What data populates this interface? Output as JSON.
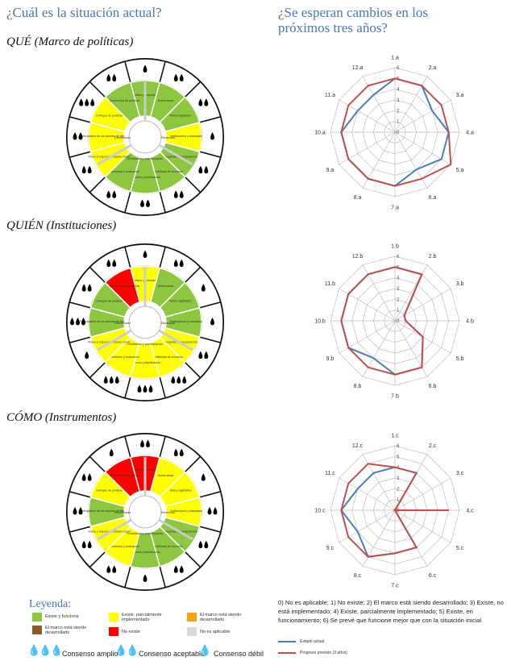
{
  "titles": {
    "left": "¿Cuál es la situación actual?",
    "right_line1": "¿Se esperan cambios en los",
    "right_line2": "próximos tres años?"
  },
  "sections": [
    {
      "heading": "QUÉ (Marco de políticas)"
    },
    {
      "heading": "QUIÉN (Instituciones)"
    },
    {
      "heading": "CÓMO (Instrumentos)"
    }
  ],
  "colors": {
    "green": "#8dc63f",
    "yellow": "#ffff00",
    "red": "#ff0000",
    "orange": "#f7a11a",
    "brown": "#8b5a2b",
    "grey": "#d9d9d9",
    "actual": "#4a7ebb",
    "projected": "#c0504d"
  },
  "wheel": {
    "segment_labels": [
      "Visión y voluntad",
      "Gobernanza",
      "Marco legislativo",
      "Instituciones y mandatos",
      "Integridad y transparencia",
      "Sostenibilidad de recursos",
      "Acciones y planificación",
      "Monitoreo y evaluación",
      "Roles y responsabilidades claros",
      "Participación de los actores de interés",
      "Enfoque de políticas",
      "Coherencia de políticas"
    ],
    "center_labels": [
      "Efectividad",
      "Eficiencia",
      "Confianza y participación"
    ],
    "sections": [
      {
        "colors": [
          "green",
          "green",
          "green",
          "yellow",
          "green",
          "green",
          "green",
          "green",
          "yellow",
          "yellow",
          "yellow",
          "green"
        ],
        "consensus": [
          1,
          2,
          2,
          1,
          2,
          2,
          2,
          2,
          2,
          2,
          3,
          2
        ]
      },
      {
        "colors": [
          "yellow",
          "green",
          "green",
          "green",
          "yellow",
          "yellow",
          "yellow",
          "yellow",
          "yellow",
          "green",
          "green",
          "red"
        ],
        "consensus": [
          1,
          2,
          1,
          1,
          2,
          3,
          3,
          3,
          1,
          3,
          2,
          2
        ]
      },
      {
        "colors": [
          "red",
          "yellow",
          "yellow",
          "yellow",
          "green",
          "green",
          "green",
          "yellow",
          "yellow",
          "green",
          "yellow",
          "red"
        ],
        "consensus": [
          2,
          2,
          1,
          2,
          2,
          2,
          1,
          2,
          2,
          2,
          2,
          1
        ]
      }
    ]
  },
  "chart_data": [
    {
      "type": "radar",
      "categories": [
        "1.a",
        "2.a",
        "3.a",
        "4.a",
        "5.a",
        "6.a",
        "7.a",
        "8.a",
        "9.a",
        "10.a",
        "11.a",
        "12.a"
      ],
      "rlim": [
        0,
        6
      ],
      "tick_labels": [
        "0",
        "1",
        "2",
        "3",
        "4",
        "5",
        "6"
      ],
      "series": [
        {
          "name": "Estado actual",
          "values": [
            5,
            5,
            4,
            5,
            5,
            4,
            5,
            5,
            5,
            5,
            4,
            4
          ]
        },
        {
          "name": "Progreso previsto (3 años)",
          "values": [
            5,
            5,
            5,
            5,
            6,
            5,
            5,
            5,
            5,
            5,
            5,
            5
          ]
        }
      ]
    },
    {
      "type": "radar",
      "categories": [
        "1.b",
        "2.b",
        "3.b",
        "4.b",
        "5.b",
        "6.b",
        "7.b",
        "8.b",
        "9.b",
        "10.b",
        "11.b",
        "12.b"
      ],
      "rlim": [
        0,
        6
      ],
      "tick_labels": [
        "0",
        "1",
        "2",
        "3",
        "4",
        "5",
        "6"
      ],
      "series": [
        {
          "name": "Estado actual",
          "values": [
            5,
            5,
            1,
            1,
            3,
            5,
            5,
            4,
            5,
            5,
            5,
            5
          ]
        },
        {
          "name": "Progreso previsto (3 años)",
          "values": [
            5,
            5,
            1,
            1,
            3,
            5,
            5,
            5,
            5,
            5,
            5,
            5
          ]
        }
      ]
    },
    {
      "type": "radar",
      "categories": [
        "1.c",
        "2.c",
        "3.c",
        "4.c",
        "5.c",
        "6.c",
        "7.c",
        "8.c",
        "9.c",
        "10.c",
        "11.c",
        "12.c"
      ],
      "rlim": [
        0,
        6
      ],
      "tick_labels": [
        "0",
        "1",
        "2",
        "3",
        "4",
        "5",
        "6"
      ],
      "series": [
        {
          "name": "Estado actual",
          "values": [
            4,
            4,
            0,
            5,
            0,
            4,
            4,
            5,
            4,
            5,
            4,
            4
          ]
        },
        {
          "name": "Progreso previsto (3 años)",
          "values": [
            4,
            4,
            0,
            5,
            0,
            4,
            4,
            5,
            5,
            5,
            5,
            5
          ]
        }
      ]
    }
  ],
  "legend": {
    "title": "Leyenda:",
    "items": [
      {
        "label": "Existe y funciona",
        "color": "green"
      },
      {
        "label": "Existe, parcialmente implementado",
        "color": "yellow"
      },
      {
        "label": "El marco está siendo desarrollado",
        "color": "orange"
      },
      {
        "label": "El marco está siendo desarrollado",
        "color": "brown"
      },
      {
        "label": "No existe",
        "color": "red"
      },
      {
        "label": "No es aplicable",
        "color": "grey"
      }
    ],
    "consensus": [
      "Consenso amplio",
      "Consenso aceptable",
      "Consenso débil"
    ]
  },
  "scale_text": "0) No es aplicable; 1) No existe; 2) El marco está siendo desarrollado; 3) Existe, no está implementado; 4) Existe, parcialmente implementado; 5) Existe, en funcionamiento; 6) Se prevé que funcione mejor que con la situación inicial",
  "series_legend": [
    "Estado actual",
    "Progreso previsto (3 años)"
  ]
}
